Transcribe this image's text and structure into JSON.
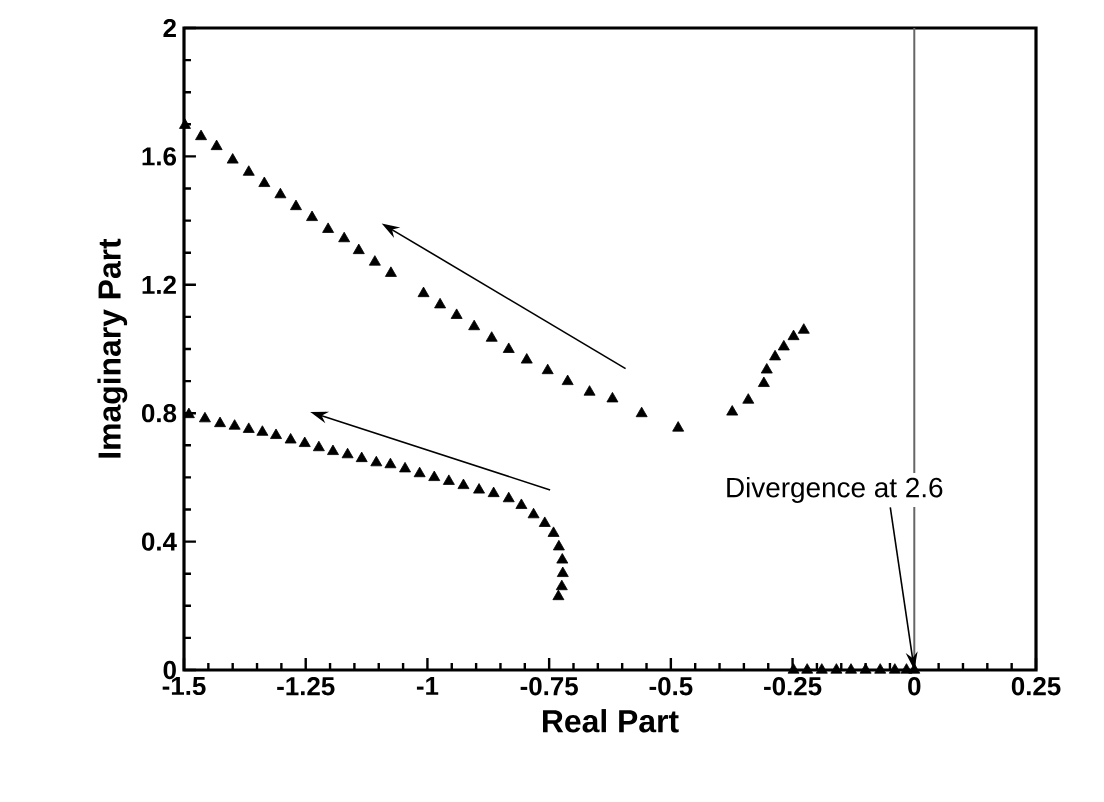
{
  "chart_data": {
    "type": "scatter",
    "xlabel": "Real Part",
    "ylabel": "Imaginary Part",
    "xlim": [
      -1.5,
      0.25
    ],
    "ylim": [
      0,
      2
    ],
    "xticks": [
      -1.5,
      -1.25,
      -1,
      -0.75,
      -0.5,
      -0.25,
      0,
      0.25
    ],
    "yticks": [
      0,
      0.4,
      0.8,
      1.2,
      1.6,
      2
    ],
    "marker": "triangle",
    "series": [
      {
        "color": "#000000",
        "x": [
          -1.498,
          -1.465,
          -1.433,
          -1.4,
          -1.367,
          -1.335,
          -1.302,
          -1.27,
          -1.237,
          -1.204,
          -1.171,
          -1.141,
          -1.108,
          -1.075,
          -1.008,
          -0.974,
          -0.94,
          -0.904,
          -0.868,
          -0.833,
          -0.796,
          -0.753,
          -0.712,
          -0.667,
          -0.62,
          -0.56,
          -0.485
        ],
        "values": [
          1.697,
          1.662,
          1.631,
          1.589,
          1.551,
          1.516,
          1.481,
          1.444,
          1.41,
          1.373,
          1.344,
          1.307,
          1.271,
          1.236,
          1.173,
          1.138,
          1.105,
          1.07,
          1.034,
          0.999,
          0.966,
          0.933,
          0.899,
          0.866,
          0.845,
          0.799,
          0.754
        ]
      },
      {
        "color": "#000000",
        "x": [
          -0.374,
          -0.341,
          -0.309,
          -0.303,
          -0.286,
          -0.268,
          -0.248,
          -0.227
        ],
        "values": [
          0.804,
          0.841,
          0.893,
          0.935,
          0.976,
          1.007,
          1.039,
          1.059
        ]
      },
      {
        "color": "#000000",
        "x": [
          -1.49,
          -1.457,
          -1.426,
          -1.396,
          -1.367,
          -1.339,
          -1.311,
          -1.281,
          -1.252,
          -1.223,
          -1.194,
          -1.164,
          -1.135,
          -1.105,
          -1.076,
          -1.046,
          -1.016,
          -0.986,
          -0.956,
          -0.926,
          -0.894,
          -0.864,
          -0.833,
          -0.807,
          -0.782,
          -0.759,
          -0.741,
          -0.73,
          -0.723,
          -0.722,
          -0.724,
          -0.731
        ],
        "values": [
          0.796,
          0.783,
          0.768,
          0.76,
          0.75,
          0.741,
          0.731,
          0.717,
          0.706,
          0.693,
          0.681,
          0.671,
          0.659,
          0.646,
          0.64,
          0.627,
          0.612,
          0.6,
          0.588,
          0.575,
          0.561,
          0.55,
          0.534,
          0.513,
          0.484,
          0.457,
          0.426,
          0.384,
          0.343,
          0.301,
          0.26,
          0.229
        ]
      },
      {
        "color": "#000000",
        "x": [
          -0.248,
          -0.22,
          -0.19,
          -0.16,
          -0.13,
          -0.1,
          -0.07,
          -0.04,
          -0.016,
          0.0
        ],
        "values": [
          0,
          0,
          0,
          0,
          0,
          0,
          0,
          0,
          0,
          0
        ]
      }
    ],
    "ref_lines": [
      {
        "axis": "x",
        "value": 0,
        "color": "#666666"
      }
    ],
    "annotations": [
      {
        "text": "Divergence at 2.6",
        "x": 0,
        "y": 0
      }
    ]
  }
}
